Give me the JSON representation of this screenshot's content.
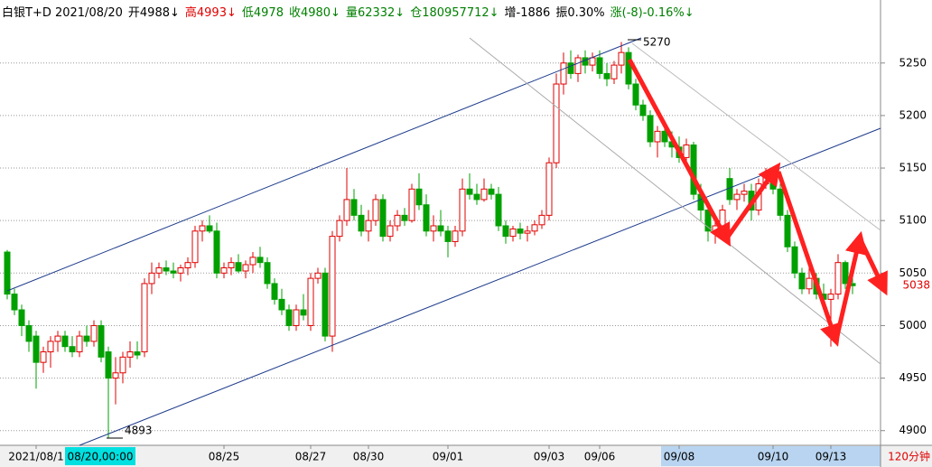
{
  "chart_data": {
    "type": "candlestick",
    "header": [
      {
        "text": "白银T+D 2021/08/20",
        "color": "#000000"
      },
      {
        "text": "开4988↓",
        "color": "#000000"
      },
      {
        "text": "高4993↓",
        "color": "#e00000"
      },
      {
        "text": "低4978",
        "color": "#008000"
      },
      {
        "text": "收4980↓",
        "color": "#008000"
      },
      {
        "text": "量62332↓",
        "color": "#008000"
      },
      {
        "text": "仓180957712↓",
        "color": "#008000"
      },
      {
        "text": "增-1886",
        "color": "#000000"
      },
      {
        "text": "振0.30%",
        "color": "#000000"
      },
      {
        "text": "涨(-8)-0.16%↓",
        "color": "#008000"
      }
    ],
    "period": "120分钟",
    "cursor_label": "08/20,00:00",
    "categories": [
      null,
      null,
      null,
      null,
      "2021/08/1",
      null,
      null,
      null,
      null,
      null,
      null,
      null,
      null,
      null,
      null,
      null,
      null,
      null,
      null,
      null,
      null,
      null,
      null,
      null,
      null,
      null,
      null,
      null,
      null,
      null,
      "08/25",
      null,
      null,
      null,
      null,
      null,
      null,
      null,
      null,
      null,
      null,
      null,
      "08/27",
      null,
      null,
      null,
      null,
      null,
      null,
      null,
      "08/30",
      null,
      null,
      null,
      null,
      null,
      null,
      null,
      null,
      null,
      null,
      "09/01",
      null,
      null,
      null,
      null,
      null,
      null,
      null,
      null,
      null,
      null,
      null,
      null,
      null,
      "09/03",
      null,
      null,
      null,
      null,
      null,
      null,
      "09/06",
      null,
      null,
      null,
      null,
      null,
      null,
      null,
      null,
      null,
      null,
      "09/08",
      null,
      null,
      null,
      null,
      null,
      null,
      null,
      null,
      null,
      null,
      null,
      null,
      "09/10",
      null,
      null,
      null,
      null,
      null,
      null,
      null,
      "09/13",
      null,
      null,
      null
    ],
    "ohlc": [
      [
        5070,
        5072,
        5025,
        5030
      ],
      [
        5030,
        5035,
        5010,
        5015
      ],
      [
        5015,
        5020,
        4990,
        5000
      ],
      [
        5000,
        5005,
        4975,
        4985
      ],
      [
        4990,
        4995,
        4940,
        4965
      ],
      [
        4965,
        4980,
        4955,
        4975
      ],
      [
        4975,
        4990,
        4960,
        4985
      ],
      [
        4985,
        4995,
        4975,
        4990
      ],
      [
        4990,
        4995,
        4975,
        4980
      ],
      [
        4980,
        4990,
        4970,
        4975
      ],
      [
        4975,
        4995,
        4970,
        4990
      ],
      [
        4990,
        5000,
        4980,
        4985
      ],
      [
        4985,
        5005,
        4980,
        5000
      ],
      [
        5000,
        5005,
        4965,
        4970
      ],
      [
        4975,
        4980,
        4893,
        4950
      ],
      [
        4950,
        4970,
        4925,
        4955
      ],
      [
        4955,
        4975,
        4945,
        4970
      ],
      [
        4970,
        4985,
        4960,
        4975
      ],
      [
        4975,
        4985,
        4968,
        4972
      ],
      [
        4975,
        5045,
        4970,
        5040
      ],
      [
        5040,
        5060,
        5030,
        5050
      ],
      [
        5050,
        5060,
        5045,
        5055
      ],
      [
        5055,
        5062,
        5048,
        5052
      ],
      [
        5052,
        5060,
        5045,
        5050
      ],
      [
        5050,
        5058,
        5042,
        5055
      ],
      [
        5055,
        5065,
        5048,
        5060
      ],
      [
        5060,
        5095,
        5055,
        5090
      ],
      [
        5090,
        5100,
        5080,
        5095
      ],
      [
        5095,
        5105,
        5088,
        5090
      ],
      [
        5090,
        5098,
        5045,
        5050
      ],
      [
        5050,
        5060,
        5045,
        5055
      ],
      [
        5055,
        5065,
        5048,
        5060
      ],
      [
        5060,
        5068,
        5050,
        5052
      ],
      [
        5052,
        5062,
        5045,
        5058
      ],
      [
        5058,
        5070,
        5050,
        5065
      ],
      [
        5065,
        5075,
        5055,
        5060
      ],
      [
        5060,
        5065,
        5035,
        5040
      ],
      [
        5040,
        5045,
        5020,
        5025
      ],
      [
        5025,
        5035,
        5010,
        5015
      ],
      [
        5015,
        5020,
        4995,
        5000
      ],
      [
        5000,
        5020,
        4995,
        5015
      ],
      [
        5015,
        5030,
        5005,
        5010
      ],
      [
        5000,
        5050,
        4995,
        5045
      ],
      [
        5045,
        5055,
        5040,
        5050
      ],
      [
        5050,
        5055,
        4985,
        4990
      ],
      [
        4990,
        5090,
        4975,
        5085
      ],
      [
        5085,
        5105,
        5080,
        5100
      ],
      [
        5100,
        5150,
        5095,
        5120
      ],
      [
        5120,
        5130,
        5100,
        5105
      ],
      [
        5105,
        5115,
        5085,
        5090
      ],
      [
        5090,
        5110,
        5080,
        5100
      ],
      [
        5100,
        5125,
        5095,
        5120
      ],
      [
        5120,
        5125,
        5080,
        5085
      ],
      [
        5085,
        5100,
        5080,
        5095
      ],
      [
        5095,
        5110,
        5090,
        5105
      ],
      [
        5105,
        5112,
        5095,
        5100
      ],
      [
        5100,
        5135,
        5098,
        5130
      ],
      [
        5130,
        5145,
        5110,
        5115
      ],
      [
        5115,
        5125,
        5085,
        5090
      ],
      [
        5090,
        5105,
        5080,
        5095
      ],
      [
        5095,
        5110,
        5085,
        5090
      ],
      [
        5090,
        5095,
        5065,
        5080
      ],
      [
        5080,
        5095,
        5075,
        5090
      ],
      [
        5090,
        5140,
        5085,
        5130
      ],
      [
        5130,
        5145,
        5120,
        5125
      ],
      [
        5125,
        5135,
        5115,
        5120
      ],
      [
        5120,
        5140,
        5118,
        5130
      ],
      [
        5130,
        5135,
        5120,
        5125
      ],
      [
        5125,
        5132,
        5090,
        5095
      ],
      [
        5095,
        5100,
        5078,
        5085
      ],
      [
        5085,
        5095,
        5080,
        5092
      ],
      [
        5092,
        5098,
        5082,
        5088
      ],
      [
        5088,
        5095,
        5080,
        5090
      ],
      [
        5090,
        5100,
        5086,
        5096
      ],
      [
        5096,
        5110,
        5092,
        5105
      ],
      [
        5105,
        5160,
        5100,
        5155
      ],
      [
        5155,
        5240,
        5150,
        5230
      ],
      [
        5230,
        5260,
        5220,
        5250
      ],
      [
        5250,
        5262,
        5235,
        5240
      ],
      [
        5240,
        5258,
        5232,
        5255
      ],
      [
        5255,
        5262,
        5240,
        5248
      ],
      [
        5248,
        5260,
        5242,
        5255
      ],
      [
        5255,
        5262,
        5235,
        5240
      ],
      [
        5240,
        5250,
        5228,
        5235
      ],
      [
        5235,
        5252,
        5230,
        5248
      ],
      [
        5248,
        5270,
        5240,
        5260
      ],
      [
        5260,
        5265,
        5225,
        5230
      ],
      [
        5230,
        5235,
        5205,
        5210
      ],
      [
        5210,
        5215,
        5195,
        5200
      ],
      [
        5200,
        5205,
        5170,
        5175
      ],
      [
        5175,
        5190,
        5160,
        5185
      ],
      [
        5185,
        5195,
        5170,
        5175
      ],
      [
        5175,
        5185,
        5160,
        5170
      ],
      [
        5170,
        5180,
        5155,
        5160
      ],
      [
        5160,
        5178,
        5150,
        5172
      ],
      [
        5172,
        5175,
        5120,
        5125
      ],
      [
        5125,
        5135,
        5100,
        5110
      ],
      [
        5110,
        5115,
        5080,
        5090
      ],
      [
        5090,
        5100,
        5078,
        5095
      ],
      [
        5095,
        5115,
        5090,
        5110
      ],
      [
        5140,
        5150,
        5115,
        5120
      ],
      [
        5120,
        5130,
        5110,
        5125
      ],
      [
        5125,
        5135,
        5118,
        5128
      ],
      [
        5128,
        5135,
        5100,
        5110
      ],
      [
        5110,
        5140,
        5105,
        5135
      ],
      [
        5135,
        5150,
        5130,
        5145
      ],
      [
        5145,
        5150,
        5125,
        5130
      ],
      [
        5130,
        5135,
        5100,
        5105
      ],
      [
        5105,
        5110,
        5070,
        5075
      ],
      [
        5075,
        5080,
        5045,
        5050
      ],
      [
        5050,
        5055,
        5030,
        5035
      ],
      [
        5035,
        5055,
        5030,
        5045
      ],
      [
        5045,
        5050,
        5025,
        5030
      ],
      [
        5030,
        5040,
        5020,
        5025
      ],
      [
        5025,
        5035,
        4980,
        5030
      ],
      [
        5030,
        5068,
        5025,
        5060
      ],
      [
        5060,
        5062,
        5035,
        5040
      ],
      [
        5040,
        5045,
        5030,
        5038
      ]
    ],
    "up_color": "#e00000",
    "down_color": "#00a000",
    "ylim": [
      4886,
      5310
    ],
    "yticks": [
      4900,
      4950,
      5000,
      5050,
      5100,
      5150,
      5200,
      5250
    ],
    "grid": true
  }
}
